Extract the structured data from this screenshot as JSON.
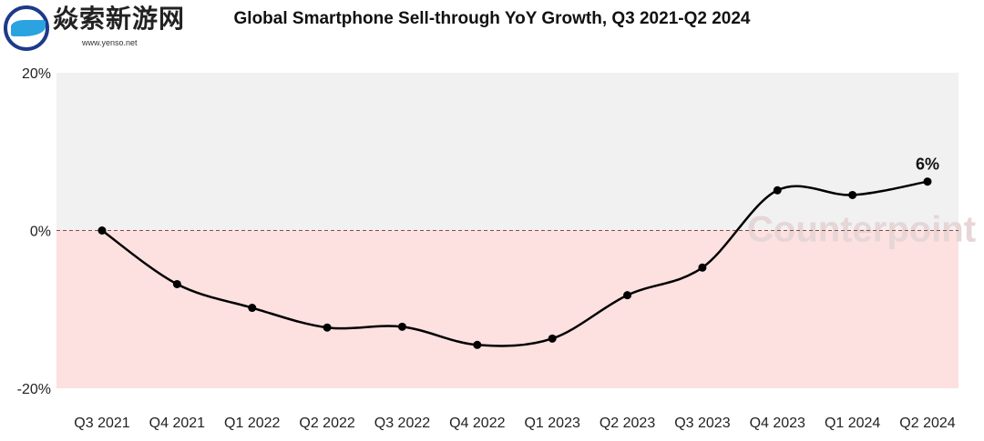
{
  "chart_data": {
    "type": "line",
    "title": "Global Smartphone Sell-through YoY Growth, Q3 2021-Q2 2024",
    "categories": [
      "Q3 2021",
      "Q4 2021",
      "Q1 2022",
      "Q2 2022",
      "Q3 2022",
      "Q4 2022",
      "Q1 2023",
      "Q2 2023",
      "Q3 2023",
      "Q4 2023",
      "Q1 2024",
      "Q2 2024"
    ],
    "values": [
      0,
      -6.8,
      -9.8,
      -12.3,
      -12.2,
      -14.5,
      -13.7,
      -8.2,
      -4.7,
      5.1,
      4.5,
      6.2
    ],
    "ylim": [
      -20,
      20
    ],
    "yticks": [
      "20%",
      "0%",
      "-20%"
    ],
    "ytick_values": [
      20,
      0,
      -20
    ],
    "data_label_last": "6%",
    "xlabel": "",
    "ylabel": "",
    "grid": false,
    "colors": {
      "positive_bg": "#f1f1f1",
      "negative_bg": "#fde0e0",
      "line": "#000000",
      "zero_line": "#8b4a4a"
    },
    "watermark": "Counterpoint"
  },
  "overlay_watermark": {
    "text": "焱索新游网",
    "url": "www.yenso.net"
  }
}
